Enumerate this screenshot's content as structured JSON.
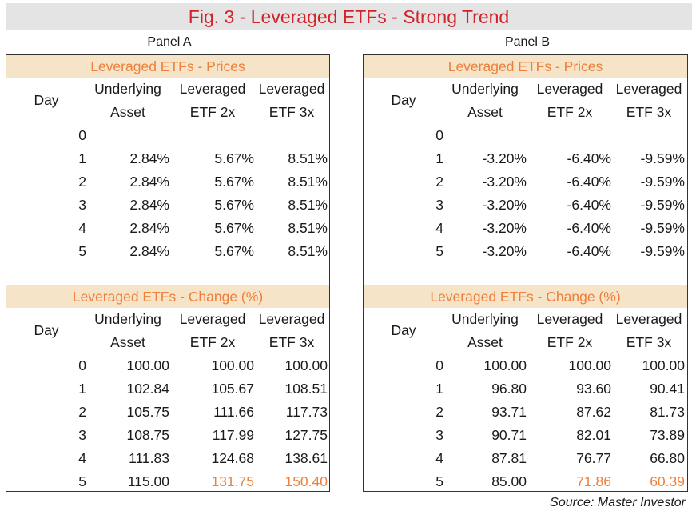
{
  "title": "Fig. 3 - Leveraged ETFs - Strong Trend",
  "source": "Source: Master Investor",
  "panels": [
    {
      "label": "Panel A",
      "prices": {
        "header": "Leveraged ETFs - Prices",
        "col_day": "Day",
        "col1": [
          "Underlying",
          "Asset"
        ],
        "col2": [
          "Leveraged",
          "ETF 2x"
        ],
        "col3": [
          "Leveraged",
          "ETF 3x"
        ],
        "rows": [
          {
            "day": "0",
            "a": "",
            "b": "",
            "c": ""
          },
          {
            "day": "1",
            "a": "2.84%",
            "b": "5.67%",
            "c": "8.51%"
          },
          {
            "day": "2",
            "a": "2.84%",
            "b": "5.67%",
            "c": "8.51%"
          },
          {
            "day": "3",
            "a": "2.84%",
            "b": "5.67%",
            "c": "8.51%"
          },
          {
            "day": "4",
            "a": "2.84%",
            "b": "5.67%",
            "c": "8.51%"
          },
          {
            "day": "5",
            "a": "2.84%",
            "b": "5.67%",
            "c": "8.51%"
          }
        ]
      },
      "change": {
        "header": "Leveraged ETFs - Change (%)",
        "col_day": "Day",
        "col1": [
          "Underlying",
          "Asset"
        ],
        "col2": [
          "Leveraged",
          "ETF 2x"
        ],
        "col3": [
          "Leveraged",
          "ETF 3x"
        ],
        "rows": [
          {
            "day": "0",
            "a": "100.00",
            "b": "100.00",
            "c": "100.00"
          },
          {
            "day": "1",
            "a": "102.84",
            "b": "105.67",
            "c": "108.51"
          },
          {
            "day": "2",
            "a": "105.75",
            "b": "111.66",
            "c": "117.73"
          },
          {
            "day": "3",
            "a": "108.75",
            "b": "117.99",
            "c": "127.75"
          },
          {
            "day": "4",
            "a": "111.83",
            "b": "124.68",
            "c": "138.61"
          },
          {
            "day": "5",
            "a": "115.00",
            "b": "131.75",
            "c": "150.40"
          }
        ]
      }
    },
    {
      "label": "Panel B",
      "prices": {
        "header": "Leveraged ETFs - Prices",
        "col_day": "Day",
        "col1": [
          "Underlying",
          "Asset"
        ],
        "col2": [
          "Leveraged",
          "ETF 2x"
        ],
        "col3": [
          "Leveraged",
          "ETF 3x"
        ],
        "rows": [
          {
            "day": "0",
            "a": "",
            "b": "",
            "c": ""
          },
          {
            "day": "1",
            "a": "-3.20%",
            "b": "-6.40%",
            "c": "-9.59%"
          },
          {
            "day": "2",
            "a": "-3.20%",
            "b": "-6.40%",
            "c": "-9.59%"
          },
          {
            "day": "3",
            "a": "-3.20%",
            "b": "-6.40%",
            "c": "-9.59%"
          },
          {
            "day": "4",
            "a": "-3.20%",
            "b": "-6.40%",
            "c": "-9.59%"
          },
          {
            "day": "5",
            "a": "-3.20%",
            "b": "-6.40%",
            "c": "-9.59%"
          }
        ]
      },
      "change": {
        "header": "Leveraged ETFs - Change (%)",
        "col_day": "Day",
        "col1": [
          "Underlying",
          "Asset"
        ],
        "col2": [
          "Leveraged",
          "ETF 2x"
        ],
        "col3": [
          "Leveraged",
          "ETF 3x"
        ],
        "rows": [
          {
            "day": "0",
            "a": "100.00",
            "b": "100.00",
            "c": "100.00"
          },
          {
            "day": "1",
            "a": "96.80",
            "b": "93.60",
            "c": "90.41"
          },
          {
            "day": "2",
            "a": "93.71",
            "b": "87.62",
            "c": "81.73"
          },
          {
            "day": "3",
            "a": "90.71",
            "b": "82.01",
            "c": "73.89"
          },
          {
            "day": "4",
            "a": "87.81",
            "b": "76.77",
            "c": "66.80"
          },
          {
            "day": "5",
            "a": "85.00",
            "b": "71.86",
            "c": "60.39"
          }
        ]
      }
    }
  ],
  "highlight_color": "#ef7f3a",
  "title_color": "#d2232a"
}
